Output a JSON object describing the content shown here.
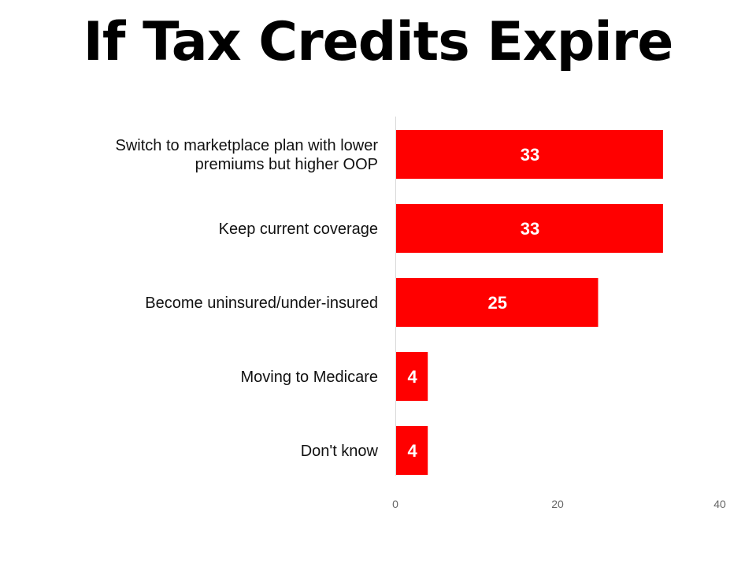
{
  "chart_data": {
    "type": "bar",
    "orientation": "horizontal",
    "title": "If Tax Credits Expire",
    "categories": [
      [
        "Switch to marketplace plan with lower",
        "premiums but higher OOP"
      ],
      [
        "Keep current coverage"
      ],
      [
        "Become uninsured/under-insured"
      ],
      [
        "Moving to Medicare"
      ],
      [
        "Don't know"
      ]
    ],
    "values": [
      33,
      33,
      25,
      4,
      4
    ],
    "xlim": [
      0,
      40
    ],
    "xticks": [
      0,
      20,
      40
    ],
    "bar_color": "#ff0000",
    "data_labels": true,
    "grid": false,
    "legend": "none"
  }
}
